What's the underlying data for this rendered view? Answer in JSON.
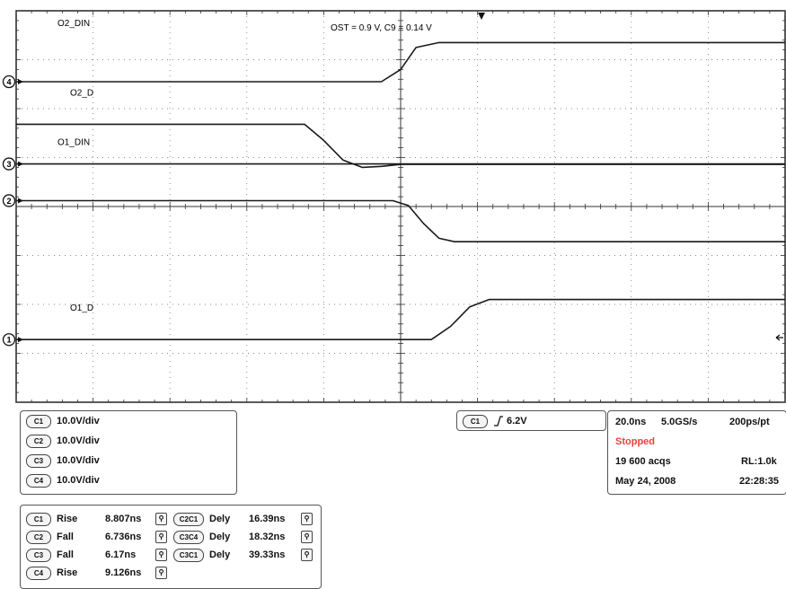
{
  "annotation": "OST = 0.9 V, C9 = 0.14 V",
  "chart_data": {
    "type": "line",
    "title": "",
    "xlabel": "",
    "ylabel": "",
    "x_unit": "ns",
    "time_per_div_ns": 20.0,
    "xlim": [
      -100,
      100
    ],
    "ylim": [
      -4,
      4
    ],
    "grid": true,
    "channel_markers": [
      "4",
      "3",
      "2",
      "1"
    ],
    "series": [
      {
        "name": "O2_DIN",
        "marker": "4",
        "x": [
          -100,
          -5,
          0,
          4,
          10,
          100
        ],
        "y": [
          2.55,
          2.55,
          2.8,
          3.25,
          3.35,
          3.35
        ]
      },
      {
        "name": "O2_D",
        "x": [
          -100,
          -25,
          -20,
          -15,
          -10,
          -5,
          0,
          100
        ],
        "y": [
          1.68,
          1.68,
          1.35,
          0.95,
          0.8,
          0.82,
          0.86,
          0.86
        ]
      },
      {
        "name": "",
        "marker": "3",
        "x": [
          -100,
          100
        ],
        "y": [
          0.87,
          0.87
        ]
      },
      {
        "name": "O1_DIN",
        "marker": "2",
        "x": [
          -100,
          -2,
          2,
          6,
          10,
          14,
          100
        ],
        "y": [
          0.12,
          0.12,
          0.02,
          -0.35,
          -0.65,
          -0.72,
          -0.72
        ]
      },
      {
        "name": "O1_D",
        "marker": "1",
        "x": [
          -100,
          8,
          13,
          18,
          23,
          100
        ],
        "y": [
          -2.72,
          -2.72,
          -2.45,
          -2.05,
          -1.9,
          -1.9
        ]
      }
    ]
  },
  "channels": [
    {
      "id": "C1",
      "scale": "10.0V/div"
    },
    {
      "id": "C2",
      "scale": "10.0V/div"
    },
    {
      "id": "C3",
      "scale": "10.0V/div"
    },
    {
      "id": "C4",
      "scale": "10.0V/div"
    }
  ],
  "trigger": {
    "source": "C1",
    "level": "6.2V"
  },
  "acquisition": {
    "timebase": "20.0ns",
    "sample_rate": "5.0GS/s",
    "resolution": "200ps/pt",
    "state": "Stopped",
    "acqs": "19 600 acqs",
    "record_length": "RL:1.0k",
    "date": "May 24, 2008",
    "time": "22:28:35"
  },
  "measurements": [
    {
      "ch": "C1",
      "name": "Rise",
      "value": "8.807ns"
    },
    {
      "ch": "C2",
      "name": "Fall",
      "value": "6.736ns"
    },
    {
      "ch": "C3",
      "name": "Fall",
      "value": "6.17ns"
    },
    {
      "ch": "C4",
      "name": "Rise",
      "value": "9.126ns"
    }
  ],
  "delays": [
    {
      "ch": "C2C1",
      "name": "Dely",
      "value": "16.39ns"
    },
    {
      "ch": "C3C4",
      "name": "Dely",
      "value": "18.32ns"
    },
    {
      "ch": "C3C1",
      "name": "Dely",
      "value": "39.33ns"
    }
  ],
  "colors": {
    "trace": "#1a1a1a",
    "grid": "#666666",
    "state": "#e0443a"
  }
}
